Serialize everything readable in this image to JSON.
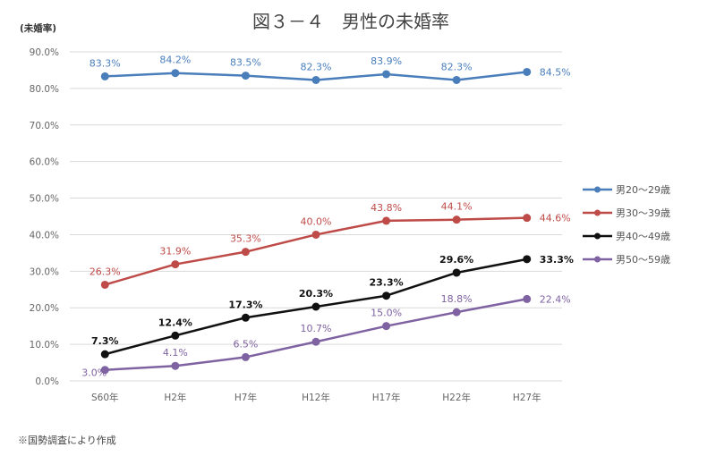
{
  "chart_data": {
    "type": "line",
    "title": "図３－４　男性の未婚率",
    "ylabel": "(未婚率)",
    "xlabel": "",
    "ylim": [
      0,
      90
    ],
    "yticks": [
      "0.0%",
      "10.0%",
      "20.0%",
      "30.0%",
      "40.0%",
      "50.0%",
      "60.0%",
      "70.0%",
      "80.0%",
      "90.0%"
    ],
    "ytick_values": [
      0,
      10,
      20,
      30,
      40,
      50,
      60,
      70,
      80,
      90
    ],
    "grid": true,
    "legend_position": "right",
    "categories": [
      "S60年",
      "H2年",
      "H7年",
      "H12年",
      "H17年",
      "H22年",
      "H27年"
    ],
    "series": [
      {
        "name": "男20～29歳",
        "color": "#4a7ebb",
        "values": [
          83.3,
          84.2,
          83.5,
          82.3,
          83.9,
          82.3,
          84.5
        ],
        "labels": [
          "83.3%",
          "84.2%",
          "83.5%",
          "82.3%",
          "83.9%",
          "82.3%",
          "84.5%"
        ],
        "label_bold": false
      },
      {
        "name": "男30～39歳",
        "color": "#be4b48",
        "values": [
          26.3,
          31.9,
          35.3,
          40.0,
          43.8,
          44.1,
          44.6
        ],
        "labels": [
          "26.3%",
          "31.9%",
          "35.3%",
          "40.0%",
          "43.8%",
          "44.1%",
          "44.6%"
        ],
        "label_bold": false
      },
      {
        "name": "男40～49歳",
        "color": "#111111",
        "values": [
          7.3,
          12.4,
          17.3,
          20.3,
          23.3,
          29.6,
          33.3
        ],
        "labels": [
          "7.3%",
          "12.4%",
          "17.3%",
          "20.3%",
          "23.3%",
          "29.6%",
          "33.3%"
        ],
        "label_bold": true
      },
      {
        "name": "男50～59歳",
        "color": "#7e62a1",
        "values": [
          3.0,
          4.1,
          6.5,
          10.7,
          15.0,
          18.8,
          22.4
        ],
        "labels": [
          "3.0%",
          "4.1%",
          "6.5%",
          "10.7%",
          "15.0%",
          "18.8%",
          "22.4%"
        ],
        "label_bold": false
      }
    ]
  },
  "footnote": "※国勢調査により作成"
}
